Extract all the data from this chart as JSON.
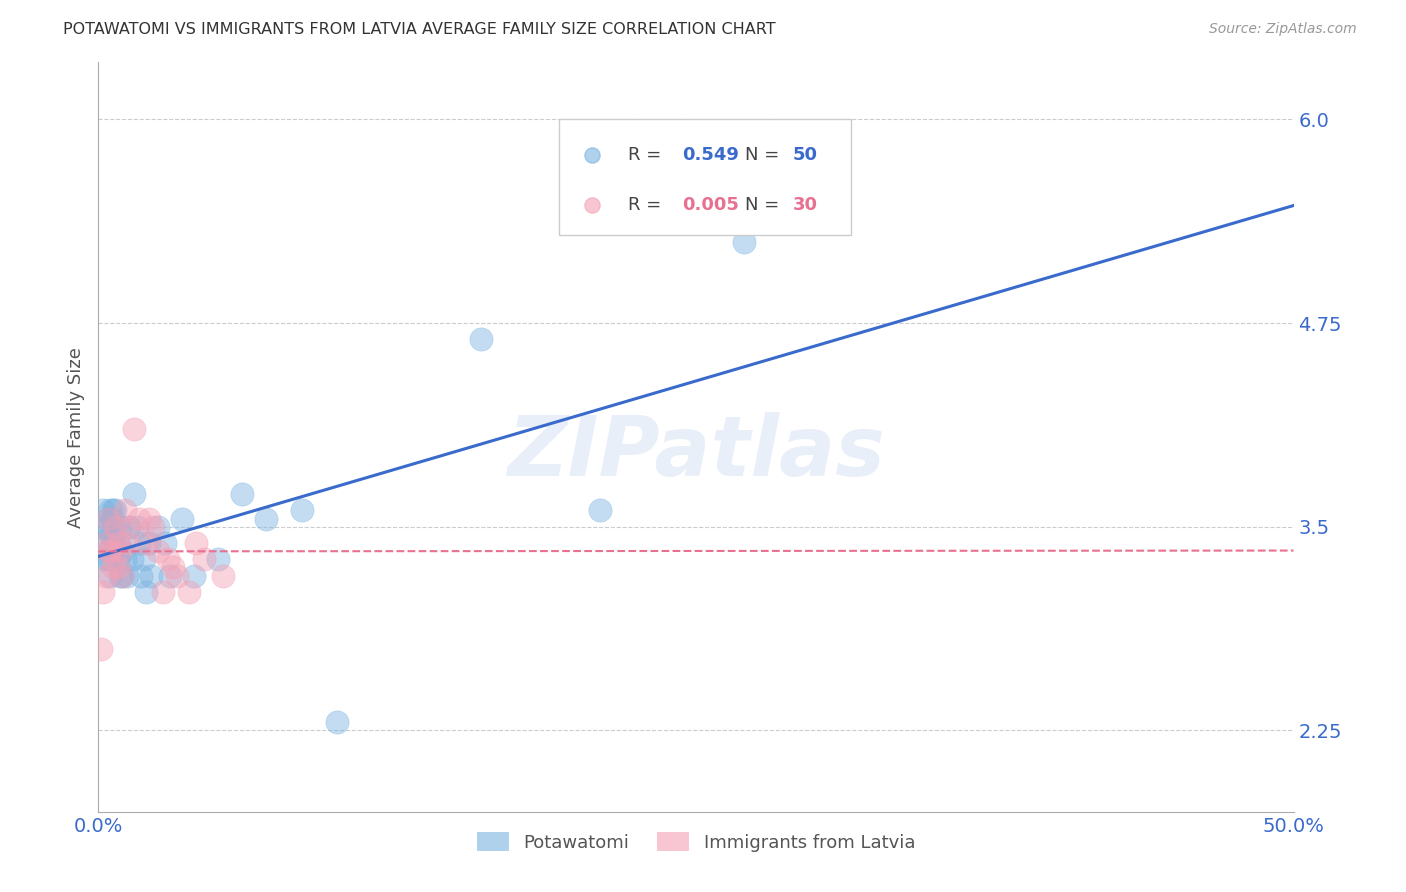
{
  "title": "POTAWATOMI VS IMMIGRANTS FROM LATVIA AVERAGE FAMILY SIZE CORRELATION CHART",
  "source": "Source: ZipAtlas.com",
  "ylabel": "Average Family Size",
  "xlim": [
    0.0,
    0.5
  ],
  "ylim": [
    1.75,
    6.35
  ],
  "yticks": [
    2.25,
    3.5,
    4.75,
    6.0
  ],
  "xticks": [
    0.0,
    0.1,
    0.2,
    0.3,
    0.4,
    0.5
  ],
  "xticklabels": [
    "0.0%",
    "",
    "",
    "",
    "",
    "50.0%"
  ],
  "background_color": "#ffffff",
  "grid_color": "#cccccc",
  "title_color": "#333333",
  "legend_labels": [
    "Potawatomi",
    "Immigrants from Latvia"
  ],
  "legend_R": [
    "0.549",
    "0.005"
  ],
  "legend_N": [
    "50",
    "30"
  ],
  "potawatomi_color": "#7ab3e0",
  "latvia_color": "#f4a0b5",
  "trendline_blue": "#3a6bcc",
  "trendline_pink": "#e87090",
  "watermark": "ZIPatlas",
  "potawatomi_x": [
    0.001,
    0.002,
    0.002,
    0.003,
    0.003,
    0.003,
    0.004,
    0.004,
    0.005,
    0.005,
    0.005,
    0.005,
    0.006,
    0.006,
    0.006,
    0.006,
    0.007,
    0.007,
    0.007,
    0.008,
    0.008,
    0.009,
    0.009,
    0.01,
    0.01,
    0.011,
    0.012,
    0.013,
    0.014,
    0.015,
    0.016,
    0.017,
    0.018,
    0.019,
    0.02,
    0.021,
    0.022,
    0.025,
    0.028,
    0.03,
    0.035,
    0.04,
    0.05,
    0.06,
    0.07,
    0.085,
    0.1,
    0.16,
    0.21,
    0.27
  ],
  "potawatomi_y": [
    3.3,
    3.5,
    3.6,
    3.4,
    3.5,
    3.3,
    3.55,
    3.35,
    3.45,
    3.6,
    3.3,
    3.2,
    3.55,
    3.45,
    3.35,
    3.6,
    3.5,
    3.4,
    3.6,
    3.4,
    3.3,
    3.5,
    3.2,
    3.35,
    3.2,
    3.3,
    3.2,
    3.5,
    3.3,
    3.7,
    3.5,
    3.4,
    3.2,
    3.3,
    3.1,
    3.4,
    3.2,
    3.5,
    3.4,
    3.2,
    3.55,
    3.2,
    3.3,
    3.7,
    3.55,
    3.6,
    2.3,
    4.65,
    3.6,
    5.25
  ],
  "latvia_x": [
    0.001,
    0.002,
    0.003,
    0.003,
    0.004,
    0.004,
    0.005,
    0.006,
    0.007,
    0.008,
    0.008,
    0.009,
    0.01,
    0.011,
    0.012,
    0.013,
    0.015,
    0.017,
    0.02,
    0.021,
    0.023,
    0.025,
    0.027,
    0.029,
    0.031,
    0.033,
    0.038,
    0.041,
    0.044,
    0.052
  ],
  "latvia_y": [
    2.75,
    3.1,
    3.2,
    3.4,
    3.55,
    3.35,
    3.35,
    3.25,
    3.5,
    3.25,
    3.4,
    3.35,
    3.2,
    3.6,
    3.4,
    3.5,
    4.1,
    3.55,
    3.4,
    3.55,
    3.5,
    3.35,
    3.1,
    3.3,
    3.25,
    3.2,
    3.1,
    3.4,
    3.3,
    3.2
  ]
}
